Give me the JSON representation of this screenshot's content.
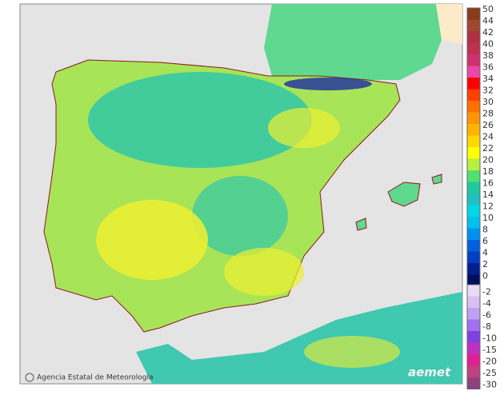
{
  "credit": "Agencia Estatal de Meteorología",
  "logo": "aemet",
  "legend": {
    "upper": [
      {
        "value": 50,
        "color": "#8b3a1a"
      },
      {
        "value": 44,
        "color": "#a0482d"
      },
      {
        "value": 42,
        "color": "#b03040"
      },
      {
        "value": 40,
        "color": "#c03050"
      },
      {
        "value": 38,
        "color": "#d03070"
      },
      {
        "value": 36,
        "color": "#e848a8"
      },
      {
        "value": 34,
        "color": "#ff0000"
      },
      {
        "value": 32,
        "color": "#ff4000"
      },
      {
        "value": 30,
        "color": "#ff7000"
      },
      {
        "value": 28,
        "color": "#ff9400"
      },
      {
        "value": 26,
        "color": "#ffb400"
      },
      {
        "value": 24,
        "color": "#ffd800"
      },
      {
        "value": 22,
        "color": "#ffff00"
      },
      {
        "value": 20,
        "color": "#b8f040"
      },
      {
        "value": 18,
        "color": "#50e070"
      },
      {
        "value": 16,
        "color": "#20c8a0"
      },
      {
        "value": 14,
        "color": "#20c0c0"
      },
      {
        "value": 12,
        "color": "#00d8e8"
      },
      {
        "value": 10,
        "color": "#00c0f0"
      },
      {
        "value": 8,
        "color": "#0090f0"
      },
      {
        "value": 6,
        "color": "#0060e0"
      },
      {
        "value": 4,
        "color": "#0040c0"
      },
      {
        "value": 2,
        "color": "#002090"
      },
      {
        "value": 0,
        "color": "#001060"
      }
    ],
    "lower": [
      {
        "value": -2,
        "color": "#eadcf4"
      },
      {
        "value": -4,
        "color": "#d8c0f0"
      },
      {
        "value": -6,
        "color": "#c0a0f0"
      },
      {
        "value": -8,
        "color": "#a070f0"
      },
      {
        "value": -10,
        "color": "#8040e0"
      },
      {
        "value": -15,
        "color": "#c030c0"
      },
      {
        "value": -20,
        "color": "#e02090"
      },
      {
        "value": -25,
        "color": "#c04080"
      },
      {
        "value": -30,
        "color": "#904080"
      }
    ]
  }
}
